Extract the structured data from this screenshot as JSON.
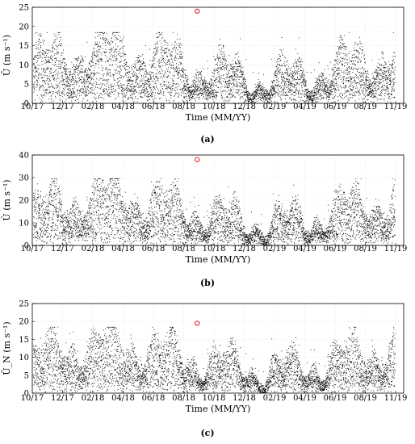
{
  "figure": {
    "background": "#ffffff",
    "point_color": "#000000",
    "marker_color": "#e02020",
    "grid_color": "#dcdcdc"
  },
  "chart_data": [
    {
      "type": "scatter",
      "panel_label": "(a)",
      "xlabel": "Time (MM/YY)",
      "ylabel": "Ū (m s⁻¹)",
      "ylim": [
        0,
        25
      ],
      "yticks": [
        "0",
        "5",
        "10",
        "15",
        "20",
        "25"
      ],
      "xticks": [
        "10/17",
        "12/17",
        "02/18",
        "04/18",
        "06/18",
        "08/18",
        "10/18",
        "12/18",
        "02/19",
        "04/19",
        "06/19",
        "08/19",
        "11/19"
      ],
      "grid": true,
      "highlight": {
        "x": "09/18",
        "y": 24
      }
    },
    {
      "type": "scatter",
      "panel_label": "(b)",
      "xlabel": "Time (MM/YY)",
      "ylabel": "Û (m s⁻¹)",
      "ylim": [
        0,
        40
      ],
      "yticks": [
        "0",
        "10",
        "20",
        "30",
        "40"
      ],
      "xticks": [
        "10/17",
        "12/17",
        "02/18",
        "04/18",
        "06/18",
        "08/18",
        "10/18",
        "12/18",
        "02/19",
        "04/19",
        "06/19",
        "08/19",
        "11/19"
      ],
      "grid": true,
      "highlight": {
        "x": "09/18",
        "y": 38
      }
    },
    {
      "type": "scatter",
      "panel_label": "(c)",
      "xlabel": "Time (MM/YY)",
      "ylabel": "Ū_N (m s⁻¹)",
      "ylim": [
        0,
        25
      ],
      "yticks": [
        "0",
        "5",
        "10",
        "15",
        "20",
        "25"
      ],
      "xticks": [
        "10/17",
        "12/17",
        "02/18",
        "04/18",
        "06/18",
        "08/18",
        "10/18",
        "12/18",
        "02/19",
        "04/19",
        "06/19",
        "08/19",
        "11/19"
      ],
      "grid": true,
      "highlight": {
        "x": "09/18",
        "y": 19.5
      }
    }
  ]
}
